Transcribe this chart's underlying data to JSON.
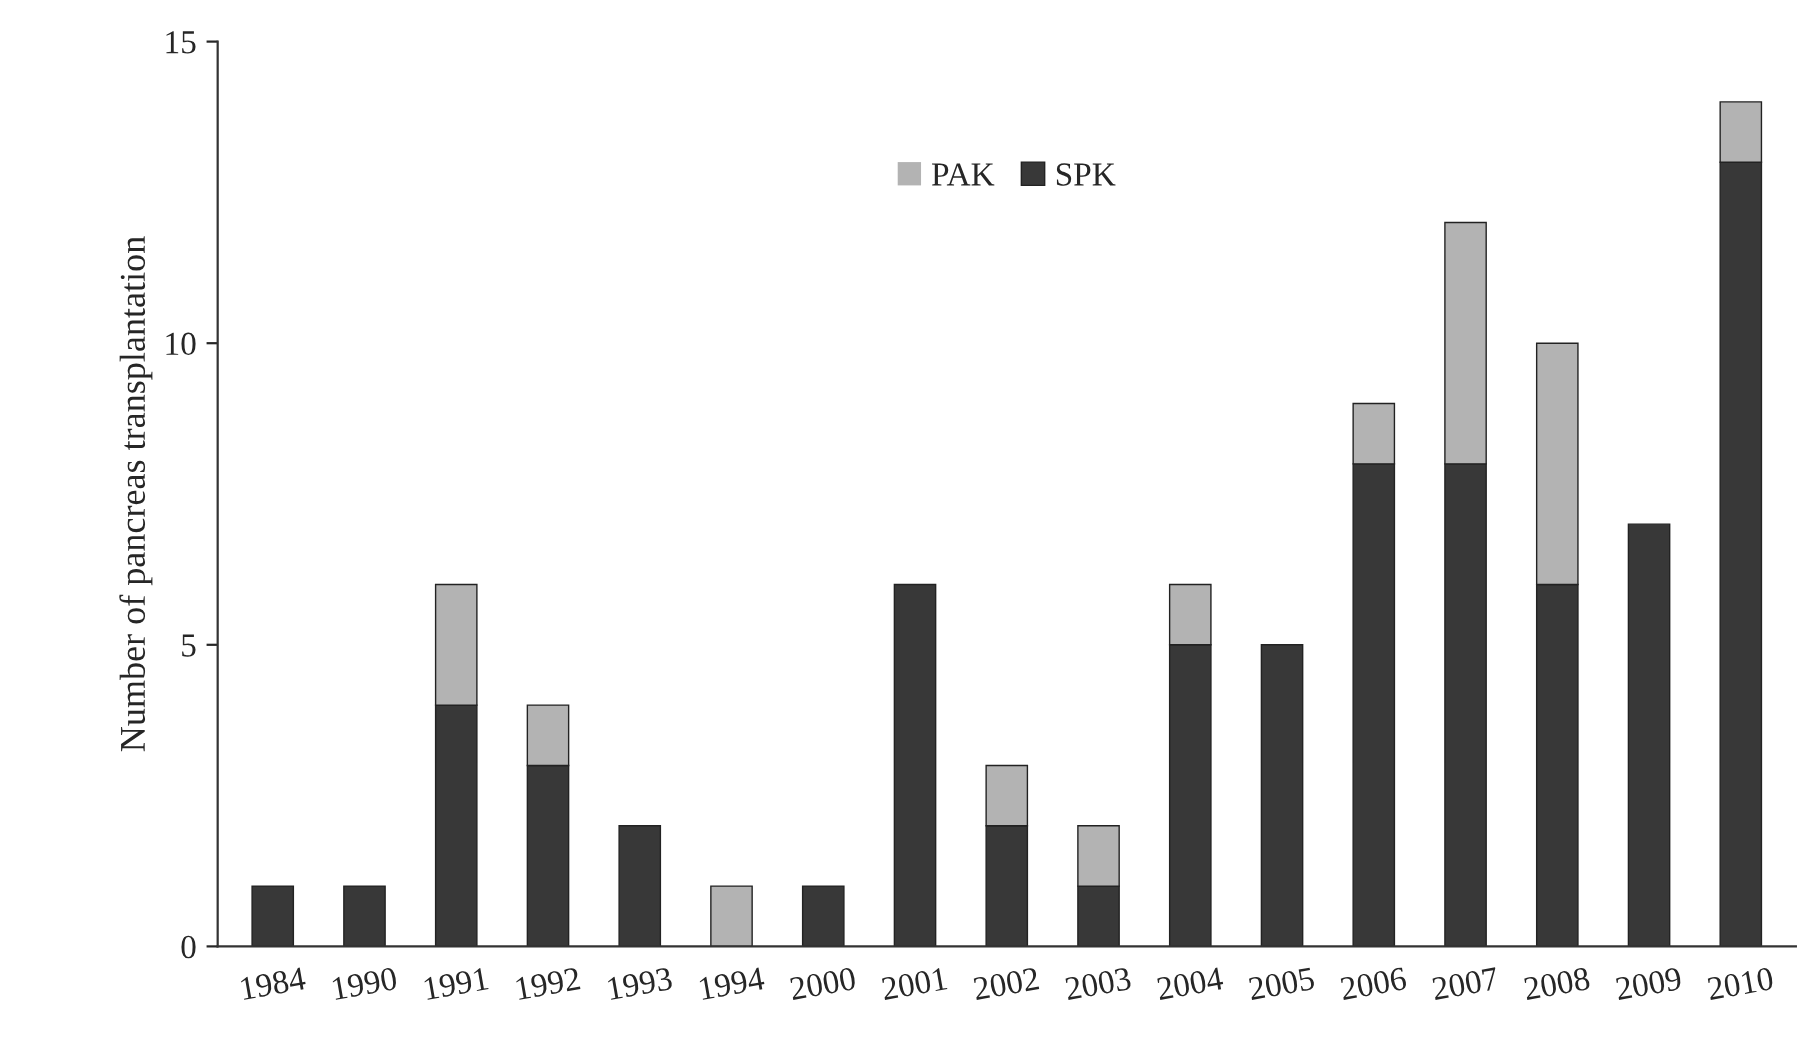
{
  "chart_data": {
    "type": "bar",
    "stacked": true,
    "ylabel": "Number of pancreas transplantation",
    "categories": [
      "1984",
      "1990",
      "1991",
      "1992",
      "1993",
      "1994",
      "2000",
      "2001",
      "2002",
      "2003",
      "2004",
      "2005",
      "2006",
      "2007",
      "2008",
      "2009",
      "2010"
    ],
    "series": [
      {
        "name": "SPK",
        "color": "#383838",
        "values": [
          1,
          1,
          4,
          3,
          2,
          0,
          1,
          6,
          2,
          1,
          5,
          5,
          8,
          8,
          6,
          7,
          13
        ]
      },
      {
        "name": "PAK",
        "color": "#b3b3b3",
        "values": [
          0,
          0,
          2,
          1,
          0,
          1,
          0,
          0,
          1,
          1,
          1,
          0,
          1,
          4,
          4,
          0,
          1
        ]
      }
    ],
    "ylim": [
      0,
      15
    ],
    "yticks": [
      0,
      5,
      10,
      15
    ],
    "grid": false,
    "legend": "top"
  }
}
